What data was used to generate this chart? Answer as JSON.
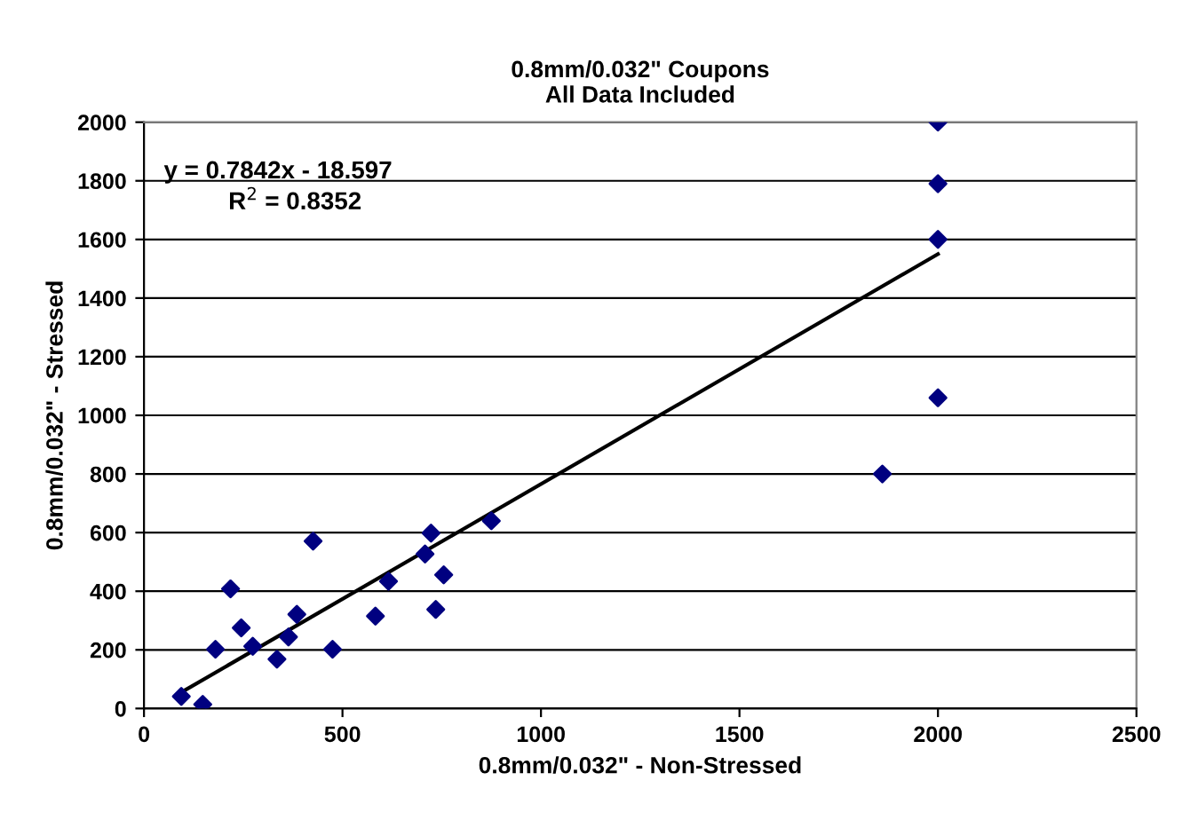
{
  "chart_data": {
    "type": "scatter",
    "title": "0.8mm/0.032\" Coupons\nAll Data Included",
    "xlabel": "0.8mm/0.032\" - Non-Stressed",
    "ylabel": "0.8mm/0.032\" - Stressed",
    "series": [
      {
        "color": "#000080",
        "marker": "diamond",
        "x": [
          94,
          148,
          180,
          218,
          245,
          274,
          335,
          364,
          385,
          426,
          475,
          583,
          616,
          708,
          723,
          735,
          755,
          875,
          1860,
          2000,
          2000,
          2000,
          2000
        ],
        "values": [
          41,
          14,
          202,
          408,
          275,
          212,
          168,
          244,
          321,
          571,
          202,
          315,
          434,
          527,
          598,
          338,
          456,
          640,
          800,
          1060,
          1600,
          1790,
          2000
        ]
      },
      {
        "type": "line",
        "color": "#000000",
        "marker": "none",
        "x": [
          94,
          2000
        ],
        "values": [
          55,
          1550
        ]
      }
    ],
    "annotations": [
      "y = 0.7842x - 18.597",
      "R$^{2}$ = 0.8352"
    ],
    "xlim": [
      0,
      2500
    ],
    "xticks": [
      0,
      500,
      1000,
      1500,
      2000,
      2500
    ],
    "ylim": [
      0,
      2000
    ],
    "yticks": [
      0,
      200,
      400,
      600,
      800,
      1000,
      1200,
      1400,
      1600,
      1800,
      2000
    ],
    "grid": "y",
    "legend": false
  }
}
